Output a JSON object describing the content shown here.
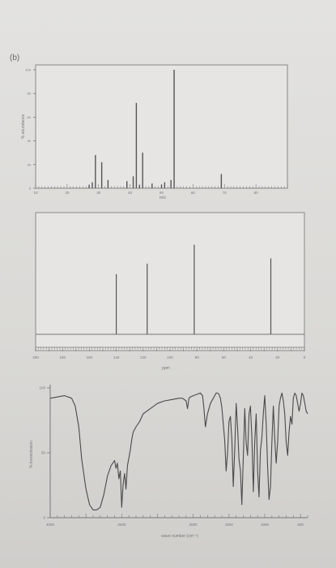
{
  "panel_label": "(b)",
  "chart_data": [
    {
      "type": "bar",
      "name": "mass-spectrum",
      "ylabel": "% abundance",
      "xlabel": "m/z",
      "ylim": [
        0,
        100
      ],
      "xlim": [
        10,
        90
      ],
      "y_ticks": [
        "0",
        "20",
        "40",
        "60",
        "80",
        "100"
      ],
      "x_ticks": [
        "10",
        "20",
        "30",
        "40",
        "50",
        "60",
        "70",
        "80"
      ],
      "x_tick_values": [
        10,
        20,
        30,
        40,
        50,
        60,
        70,
        80
      ],
      "peaks": [
        {
          "mz": 27,
          "value": 3
        },
        {
          "mz": 28,
          "value": 5
        },
        {
          "mz": 29,
          "value": 28
        },
        {
          "mz": 31,
          "value": 22
        },
        {
          "mz": 33,
          "value": 7
        },
        {
          "mz": 39,
          "value": 6
        },
        {
          "mz": 41,
          "value": 10
        },
        {
          "mz": 42,
          "value": 72
        },
        {
          "mz": 43,
          "value": 3
        },
        {
          "mz": 44,
          "value": 30
        },
        {
          "mz": 47,
          "value": 4
        },
        {
          "mz": 50,
          "value": 3
        },
        {
          "mz": 51,
          "value": 5
        },
        {
          "mz": 53,
          "value": 7
        },
        {
          "mz": 54,
          "value": 100
        },
        {
          "mz": 69,
          "value": 12
        }
      ]
    },
    {
      "type": "bar",
      "name": "13C-nmr-spectrum",
      "xlabel": "ppm",
      "xlim": [
        200,
        0
      ],
      "x_ticks": [
        "200",
        "180",
        "160",
        "140",
        "120",
        "100",
        "80",
        "60",
        "40",
        "20",
        "0"
      ],
      "x_tick_values": [
        200,
        180,
        160,
        140,
        120,
        100,
        80,
        60,
        40,
        20,
        0
      ],
      "peaks": [
        {
          "ppm": 140,
          "value": 57
        },
        {
          "ppm": 117,
          "value": 67
        },
        {
          "ppm": 82,
          "value": 85
        },
        {
          "ppm": 25,
          "value": 72
        }
      ]
    },
    {
      "type": "line",
      "name": "ir-spectrum",
      "ylabel": "% transmission",
      "xlabel": "wave number (cm⁻¹)",
      "ylim": [
        0,
        100
      ],
      "xlim": [
        4000,
        400
      ],
      "y_ticks": [
        "0",
        "50",
        "100"
      ],
      "x_ticks": [
        "4000",
        "3000",
        "2000",
        "1500",
        "1000",
        "500"
      ],
      "x_tick_values": [
        4000,
        3000,
        2000,
        1500,
        1000,
        500
      ],
      "x": [
        4000,
        3900,
        3800,
        3700,
        3650,
        3600,
        3560,
        3500,
        3450,
        3400,
        3350,
        3300,
        3250,
        3200,
        3150,
        3100,
        3080,
        3060,
        3040,
        3020,
        3000,
        2980,
        2960,
        2940,
        2920,
        2900,
        2880,
        2860,
        2840,
        2800,
        2750,
        2700,
        2600,
        2500,
        2400,
        2300,
        2200,
        2150,
        2100,
        2080,
        2060,
        2040,
        2000,
        1950,
        1900,
        1870,
        1850,
        1830,
        1800,
        1760,
        1720,
        1700,
        1680,
        1660,
        1640,
        1620,
        1600,
        1580,
        1560,
        1540,
        1520,
        1500,
        1480,
        1460,
        1440,
        1420,
        1400,
        1380,
        1360,
        1340,
        1320,
        1300,
        1280,
        1260,
        1240,
        1220,
        1200,
        1180,
        1160,
        1140,
        1120,
        1100,
        1080,
        1060,
        1040,
        1020,
        1000,
        980,
        960,
        940,
        920,
        900,
        880,
        860,
        840,
        820,
        800,
        780,
        760,
        740,
        720,
        700,
        680,
        660,
        640,
        620,
        600,
        580,
        560,
        540,
        520,
        500,
        480,
        460,
        440,
        420,
        400
      ],
      "y": [
        92,
        93,
        94,
        92,
        86,
        70,
        45,
        22,
        10,
        6,
        6,
        8,
        18,
        32,
        40,
        44,
        38,
        42,
        30,
        36,
        8,
        26,
        34,
        22,
        40,
        46,
        52,
        60,
        66,
        70,
        74,
        80,
        84,
        88,
        90,
        91,
        92,
        92,
        90,
        84,
        92,
        93,
        94,
        95,
        96,
        94,
        84,
        70,
        80,
        88,
        92,
        94,
        96,
        96,
        95,
        92,
        85,
        72,
        60,
        36,
        50,
        74,
        78,
        60,
        24,
        52,
        88,
        70,
        45,
        36,
        10,
        46,
        84,
        58,
        48,
        80,
        86,
        62,
        20,
        58,
        80,
        36,
        16,
        52,
        62,
        80,
        94,
        72,
        40,
        14,
        24,
        58,
        86,
        60,
        42,
        58,
        86,
        92,
        96,
        90,
        80,
        58,
        48,
        66,
        78,
        72,
        92,
        96,
        94,
        88,
        82,
        88,
        96,
        94,
        88,
        82,
        80
      ]
    }
  ]
}
